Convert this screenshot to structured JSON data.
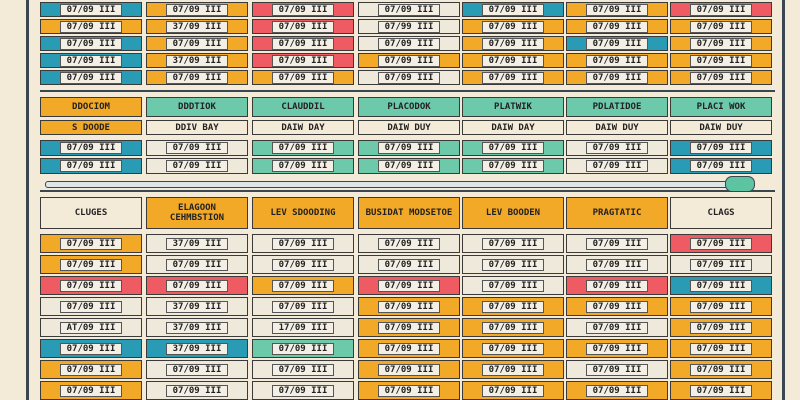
{
  "top": {
    "rows": [
      [
        "07/09 III",
        "07/09 III",
        "07/09 III",
        "07/09 III",
        "07/09 III",
        "07/09 III",
        "07/09 III"
      ],
      [
        "07/09 III",
        "37/09 III",
        "07/09 III",
        "07/99 III",
        "07/09 III",
        "07/09 III",
        "07/09 III"
      ],
      [
        "07/09 III",
        "07/09 III",
        "07/09 III",
        "07/09 III",
        "07/09 III",
        "07/09 III",
        "07/09 III"
      ],
      [
        "07/09 III",
        "37/09 III",
        "07/09 III",
        "07/09 III",
        "07/09 III",
        "07/09 III",
        "07/09 III"
      ],
      [
        "07/09 III",
        "07/09 III",
        "07/09 III",
        "07/09 III",
        "07/09 III",
        "07/09 III",
        "07/09 III"
      ]
    ]
  },
  "middle": {
    "headers": [
      "DDOCIOM",
      "DDDTIOK",
      "CLAUDDIL",
      "PLACODOK",
      "PLATWIK",
      "PDLATIDOE",
      "PLACI WOK"
    ],
    "subheaders": [
      "S DOODE",
      "DDIV BAY",
      "DAIW DAY",
      "DAIW DUY",
      "DAIW DAY",
      "DAIW DUY",
      "DAIW DUY"
    ],
    "rows": [
      [
        "07/09 III",
        "07/09 III",
        "07/09 III",
        "07/09 III",
        "07/09 III",
        "07/09 III",
        "07/09 III"
      ],
      [
        "07/09 III",
        "07/09 III",
        "07/09 III",
        "07/09 III",
        "07/09 III",
        "07/09 III",
        "07/09 III"
      ]
    ]
  },
  "bottom": {
    "headers": [
      "CLUGES",
      "ELAGOON CEHMBSTION",
      "LEV SDOODING",
      "BUSIDAT MODSETOE",
      "LEV BOODEN",
      "PRAGTATIC",
      "CLAGS"
    ],
    "rows": [
      [
        "07/09 III",
        "37/09 III",
        "07/09 III",
        "07/09 III",
        "07/09 III",
        "07/09 III",
        "07/09 III"
      ],
      [
        "07/09 III",
        "07/09 III",
        "07/09 III",
        "07/09 III",
        "07/09 III",
        "07/09 III",
        "07/09 III"
      ],
      [
        "07/09 III",
        "07/09 III",
        "07/09 III",
        "07/09 III",
        "07/09 III",
        "07/09 III",
        "07/09 III"
      ],
      [
        "07/09 III",
        "37/09 III",
        "07/09 III",
        "07/09 III",
        "07/09 III",
        "07/09 III",
        "07/09 III"
      ],
      [
        "AT/09 III",
        "37/09 III",
        "17/09 III",
        "07/09 III",
        "07/09 III",
        "07/09 III",
        "07/09 III"
      ],
      [
        "07/09 III",
        "37/09 III",
        "07/09 III",
        "07/09 III",
        "07/09 III",
        "07/09 III",
        "07/09 III"
      ],
      [
        "07/09 III",
        "07/09 III",
        "07/09 III",
        "07/09 III",
        "07/09 III",
        "07/09 III",
        "07/09 III"
      ],
      [
        "07/09 III",
        "07/09 III",
        "07/09 III",
        "07/09 III",
        "07/09 III",
        "07/09 III",
        "07/09 III"
      ]
    ]
  }
}
